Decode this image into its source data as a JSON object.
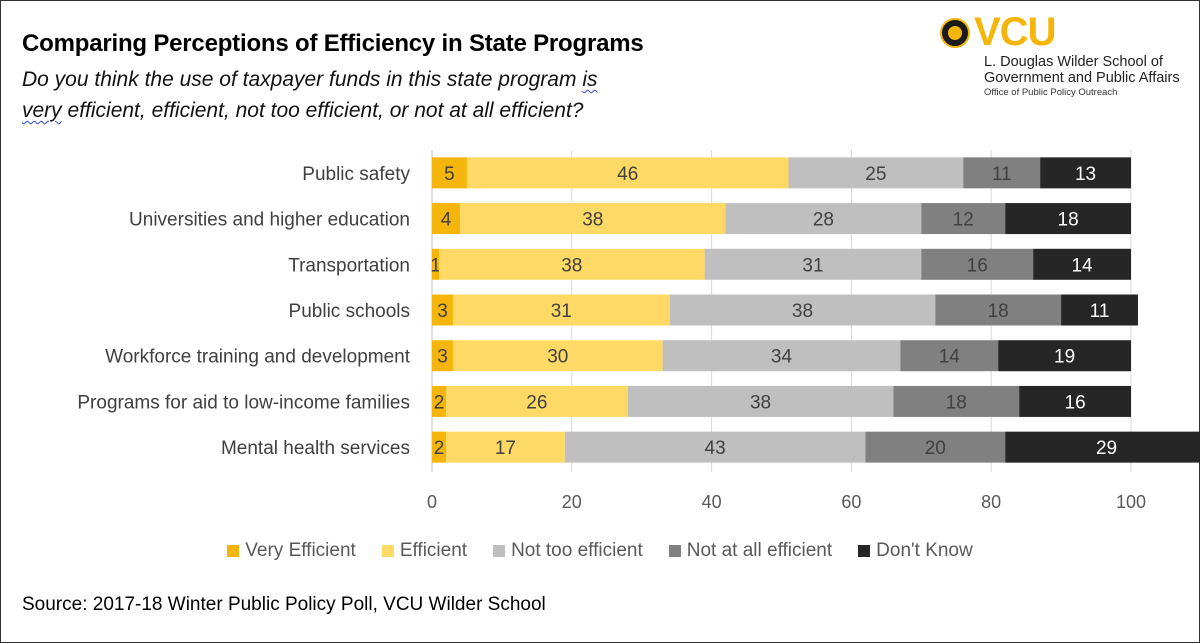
{
  "header": {
    "title": "Comparing Perceptions of Efficiency in State Programs",
    "subtitle_line1_prefix": "Do you think the use of taxpayer funds in this state program ",
    "subtitle_line1_flagged": "is",
    "subtitle_line2_flagged": "very",
    "subtitle_line2_rest": " efficient, efficient, not too efficient, or not at all efficient?"
  },
  "logo": {
    "brand": "VCU",
    "line1": "L. Douglas Wilder School of",
    "line2": "Government and Public Affairs",
    "line3": "Office of Public Policy Outreach",
    "color": "#F5B50A"
  },
  "source": "Source: 2017-18 Winter Public Policy Poll, VCU Wilder School",
  "chart_data": {
    "type": "bar",
    "orientation": "horizontal",
    "stacked": true,
    "title": "Comparing Perceptions of Efficiency in State Programs",
    "xlabel": "",
    "ylabel": "",
    "xlim": [
      0,
      100
    ],
    "xticks": [
      0,
      20,
      40,
      60,
      80,
      100
    ],
    "grid": true,
    "legend_position": "bottom",
    "categories": [
      "Public safety",
      "Universities and higher education",
      "Transportation",
      "Public schools",
      "Workforce training and development",
      "Programs for aid to low-income families",
      "Mental health services"
    ],
    "series": [
      {
        "name": "Very Efficient",
        "color": "#F5B50A",
        "label_color": "#404040",
        "values": [
          5,
          4,
          1,
          3,
          3,
          2,
          2
        ]
      },
      {
        "name": "Efficient",
        "color": "#FFD966",
        "label_color": "#404040",
        "values": [
          46,
          38,
          38,
          31,
          30,
          26,
          17
        ]
      },
      {
        "name": "Not too efficient",
        "color": "#BFBFBF",
        "label_color": "#404040",
        "values": [
          25,
          28,
          31,
          38,
          34,
          38,
          43
        ]
      },
      {
        "name": "Not at all efficient",
        "color": "#808080",
        "label_color": "#404040",
        "values": [
          11,
          12,
          16,
          18,
          14,
          18,
          20
        ]
      },
      {
        "name": "Don't Know",
        "color": "#262626",
        "label_color": "#FFFFFF",
        "values": [
          13,
          18,
          14,
          11,
          19,
          16,
          29
        ]
      }
    ]
  }
}
